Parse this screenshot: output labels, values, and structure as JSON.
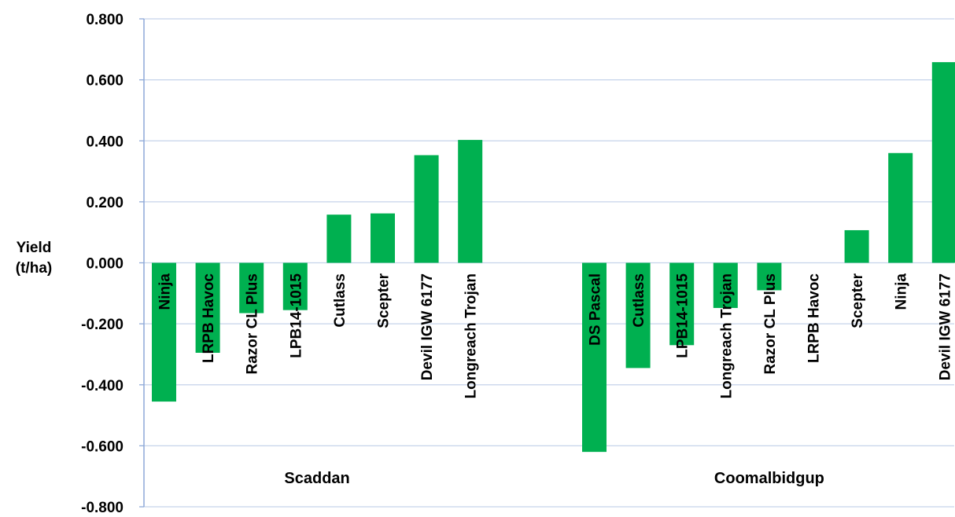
{
  "chart_data": {
    "type": "bar",
    "ylabel": "Yield (t/ha)",
    "ylabel_lines": [
      "Yield",
      "(t/ha)"
    ],
    "ylim": [
      -0.8,
      0.8
    ],
    "yticks": [
      0.8,
      0.6,
      0.4,
      0.2,
      0.0,
      -0.2,
      -0.4,
      -0.6,
      -0.8
    ],
    "ytick_labels": [
      "0.800",
      "0.600",
      "0.400",
      "0.200",
      "0.000",
      "-0.200",
      "-0.400",
      "-0.600",
      "-0.800"
    ],
    "grid": true,
    "legend": "none",
    "bar_color": "#00B050",
    "grid_color": "#C5D3EA",
    "axis_color": "#8EA9D8",
    "groups": [
      {
        "name": "Scaddan",
        "categories": [
          "Ninja",
          "LRPB Havoc",
          "Razor CL Plus",
          "LPB14-1015",
          "Cutlass",
          "Scepter",
          "Devil IGW 6177",
          "Longreach Trojan"
        ],
        "values": [
          -0.455,
          -0.295,
          -0.165,
          -0.155,
          0.158,
          0.162,
          0.353,
          0.403
        ]
      },
      {
        "name": "Coomalbidgup",
        "categories": [
          "DS Pascal",
          "Cutlass",
          "LPB14-1015",
          "Longreach Trojan",
          "Razor CL Plus",
          "LRPB Havoc",
          "Scepter",
          "Ninja",
          "Devil IGW 6177"
        ],
        "values": [
          -0.62,
          -0.345,
          -0.27,
          -0.148,
          -0.09,
          0.0,
          0.107,
          0.36,
          0.658
        ]
      }
    ]
  }
}
